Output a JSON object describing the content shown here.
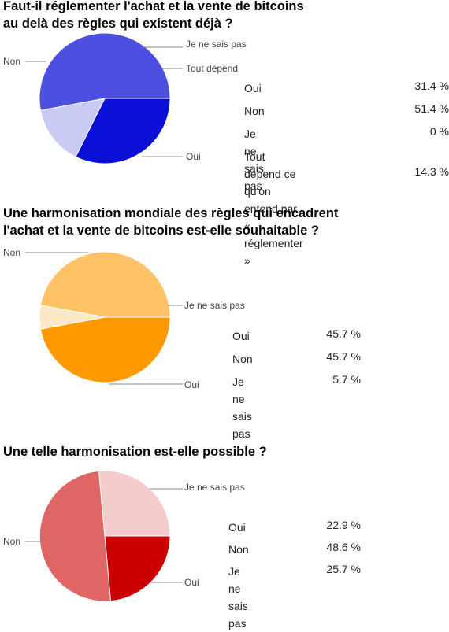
{
  "chart_data": [
    {
      "type": "pie",
      "title": "Faut-il réglementer l'achat et la vente de bitcoins\nau delà des règles qui existent déjà ?",
      "categories": [
        "Oui",
        "Non",
        "Je ne sais pas",
        "Tout dépend"
      ],
      "values": [
        31.4,
        51.4,
        0,
        14.3
      ],
      "value_labels": [
        "31.4 %",
        "51.4 %",
        "0 %",
        "14.3 %"
      ],
      "table_labels": [
        "Oui",
        "Non",
        "Je ne sais pas",
        "Tout dépend ce qu'on\nentend par « réglementer »"
      ],
      "colors": [
        "#0b10d6",
        "#4d4fe0",
        "#3333cc",
        "#c9cbf5"
      ]
    },
    {
      "type": "pie",
      "title": "Une harmonisation mondiale des règles qui encadrent\nl'achat et la vente de bitcoins est-elle souhaitable ?",
      "categories": [
        "Oui",
        "Non",
        "Je ne sais pas"
      ],
      "values": [
        45.7,
        45.7,
        5.7
      ],
      "value_labels": [
        "45.7 %",
        "45.7 %",
        "5.7 %"
      ],
      "table_labels": [
        "Oui",
        "Non",
        "Je ne sais pas"
      ],
      "colors": [
        "#ff9900",
        "#ffc266",
        "#fde8c8"
      ]
    },
    {
      "type": "pie",
      "title": "Une telle harmonisation est-elle possible ?",
      "categories": [
        "Oui",
        "Non",
        "Je ne sais pas"
      ],
      "values": [
        22.9,
        48.6,
        25.7
      ],
      "value_labels": [
        "22.9 %",
        "48.6 %",
        "25.7 %"
      ],
      "table_labels": [
        "Oui",
        "Non",
        "Je ne sais pas"
      ],
      "colors": [
        "#cc0000",
        "#e06666",
        "#f4cccc"
      ]
    }
  ]
}
